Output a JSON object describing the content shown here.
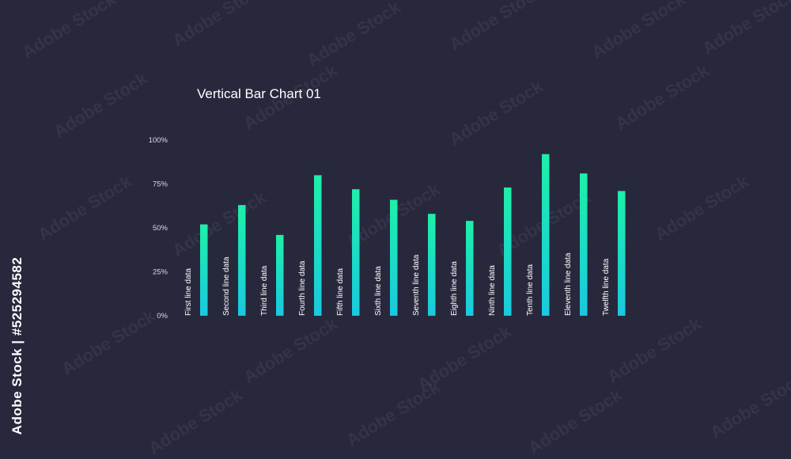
{
  "colors": {
    "background": "#28283d",
    "bar_top": "#1ef0a8",
    "bar_bottom": "#19c9e0",
    "text": "#ffffff",
    "axis_text": "#d9d9e6"
  },
  "watermark": {
    "tile_text": "Adobe Stock",
    "side_text": "Adobe Stock | #525294582"
  },
  "chart_data": {
    "type": "bar",
    "title": "Vertical Bar Chart 01",
    "xlabel": "",
    "ylabel": "",
    "ylim": [
      0,
      100
    ],
    "yticks": [
      0,
      25,
      50,
      75,
      100
    ],
    "ytick_labels": [
      "0%",
      "25%",
      "50%",
      "75%",
      "100%"
    ],
    "grid": false,
    "categories": [
      "First line data",
      "Second line data",
      "Third line data",
      "Fourth line data",
      "Fifth line data",
      "Sixth line data",
      "Seventh line data",
      "Eighth line data",
      "Ninth line data",
      "Tenth line data",
      "Eleventh line data",
      "Twelfth line data"
    ],
    "values": [
      52,
      63,
      46,
      80,
      72,
      66,
      58,
      54,
      73,
      92,
      81,
      71
    ]
  }
}
